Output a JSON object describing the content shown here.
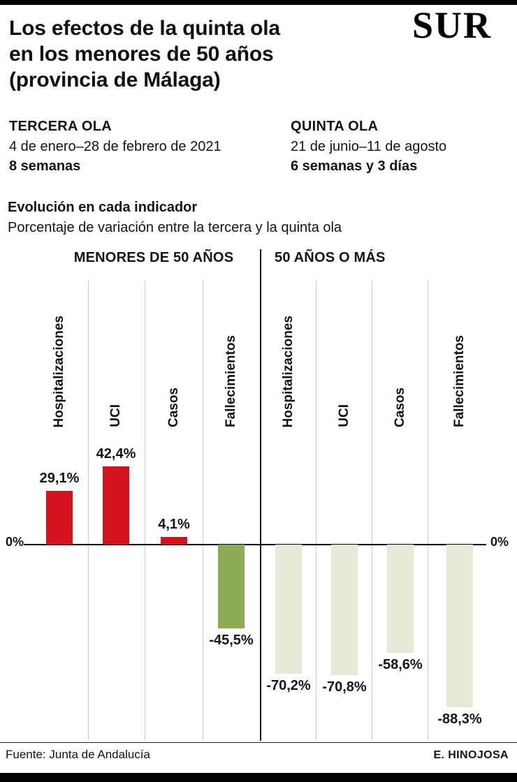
{
  "brand": "SUR",
  "header": {
    "title_line1": "Los efectos de la quinta ola",
    "title_line2": "en los menores de 50 años",
    "title_line3": "(provincia de Málaga)"
  },
  "waves": [
    {
      "name": "TERCERA OLA",
      "dates": "4 de enero–28 de febrero de 2021",
      "duration": "8 semanas"
    },
    {
      "name": "QUINTA OLA",
      "dates": "21 de junio–11 de agosto",
      "duration": "6 semanas y 3 días"
    }
  ],
  "subtitle": {
    "heading": "Evolución en cada indicador",
    "description": "Porcentaje de variación entre la tercera y la quinta ola"
  },
  "chart_data": {
    "type": "bar",
    "unit": "%",
    "zero_label": "0%",
    "colors": {
      "positive_red": "#d2121c",
      "negative_green": "#8dac55",
      "negative_pale_green": "#e5e9d6"
    },
    "groups": [
      {
        "label": "MENORES DE 50 AÑOS",
        "bars": [
          {
            "category": "Hospitalizaciones",
            "value": 29.1,
            "value_label": "29,1%",
            "color": "#d2121c"
          },
          {
            "category": "UCI",
            "value": 42.4,
            "value_label": "42,4%",
            "color": "#d2121c"
          },
          {
            "category": "Casos",
            "value": 4.1,
            "value_label": "4,1%",
            "color": "#d2121c"
          },
          {
            "category": "Fallecimientos",
            "value": -45.5,
            "value_label": "-45,5%",
            "color": "#8dac55"
          }
        ]
      },
      {
        "label": "50 AÑOS O MÁS",
        "bars": [
          {
            "category": "Hospitalizaciones",
            "value": -70.2,
            "value_label": "-70,2%",
            "color": "#e5e9d6"
          },
          {
            "category": "UCI",
            "value": -70.8,
            "value_label": "-70,8%",
            "color": "#e5e9d6"
          },
          {
            "category": "Casos",
            "value": -58.6,
            "value_label": "-58,6%",
            "color": "#e5e9d6"
          },
          {
            "category": "Fallecimientos",
            "value": -88.3,
            "value_label": "-88,3%",
            "color": "#e5e9d6"
          }
        ]
      }
    ]
  },
  "footer": {
    "source": "Fuente: Junta de Andalucía",
    "author": "E. HINOJOSA"
  }
}
